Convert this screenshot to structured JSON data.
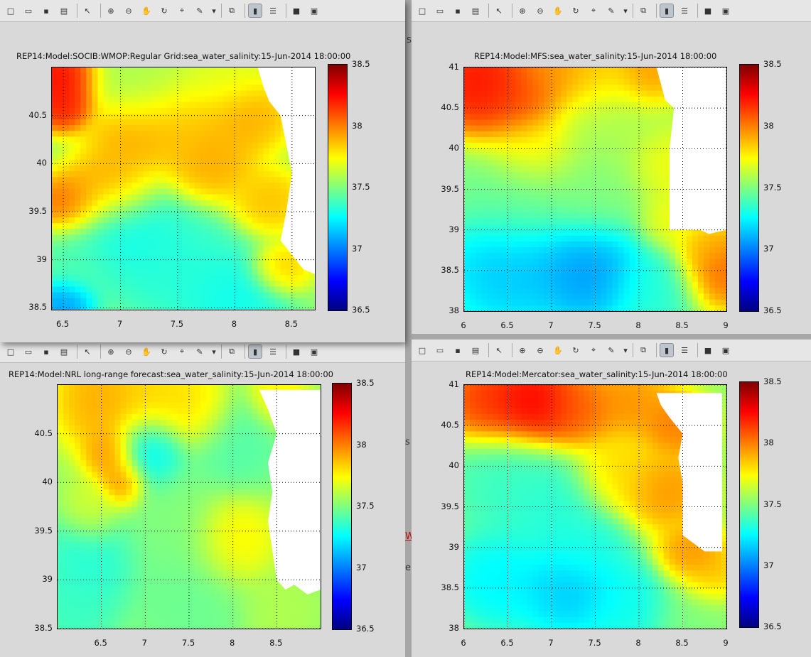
{
  "colors": {
    "colormap": [
      "#00007f",
      "#0000ff",
      "#007fff",
      "#00ffff",
      "#7fff7f",
      "#ffff00",
      "#ff7f00",
      "#ff0000",
      "#7f0000"
    ],
    "land": "#ffffff"
  },
  "toolbar_icons": [
    "new-file-icon",
    "open-folder-icon",
    "save-icon",
    "print-icon",
    "pointer-icon",
    "zoom-in-icon",
    "zoom-out-icon",
    "pan-hand-icon",
    "rotate-3d-icon",
    "data-cursor-icon",
    "brush-icon",
    "dropdown-arrow-icon",
    "link-plot-icon",
    "colorbar-toggle-icon",
    "legend-toggle-icon",
    "hide-tools-icon",
    "dock-icon"
  ],
  "background": {
    "fragments": [
      "s",
      "S",
      "W",
      "e"
    ]
  },
  "panels": [
    {
      "id": "socib",
      "title": "REP14:Model:SOCIB:WMOP:Regular Grid:sea_water_salinity:15-Jun-2014 18:00:00",
      "xticks": [
        "6.5",
        "7",
        "7.5",
        "8",
        "8.5"
      ],
      "yticks": [
        "40.5",
        "40",
        "39.5",
        "39",
        "38.5"
      ],
      "cbar_ticks": [
        "38.5",
        "38",
        "37.5",
        "37",
        "36.5"
      ],
      "chart_data": {
        "type": "heatmap",
        "variable": "sea_water_salinity",
        "xlim": [
          6.4,
          8.7
        ],
        "ylim": [
          38.48,
          41.0
        ],
        "clim": [
          36.5,
          38.5
        ],
        "grid": true,
        "blobs": [
          {
            "x": 6.45,
            "y": 40.9,
            "v": 38.3,
            "r": 0.25
          },
          {
            "x": 6.5,
            "y": 40.6,
            "v": 38.25,
            "r": 0.2
          },
          {
            "x": 6.55,
            "y": 39.55,
            "v": 38.15,
            "r": 0.25
          },
          {
            "x": 6.9,
            "y": 39.75,
            "v": 38.0,
            "r": 0.3
          },
          {
            "x": 7.1,
            "y": 40.3,
            "v": 37.95,
            "r": 0.3
          },
          {
            "x": 7.5,
            "y": 40.4,
            "v": 37.9,
            "r": 0.35
          },
          {
            "x": 7.8,
            "y": 40.0,
            "v": 37.95,
            "r": 0.3
          },
          {
            "x": 8.1,
            "y": 40.5,
            "v": 37.95,
            "r": 0.3
          },
          {
            "x": 8.3,
            "y": 39.6,
            "v": 37.9,
            "r": 0.25
          },
          {
            "x": 8.4,
            "y": 38.9,
            "v": 37.9,
            "r": 0.2
          },
          {
            "x": 7.0,
            "y": 39.3,
            "v": 37.25,
            "r": 0.4
          },
          {
            "x": 7.5,
            "y": 38.9,
            "v": 37.3,
            "r": 0.45
          },
          {
            "x": 8.0,
            "y": 38.6,
            "v": 37.25,
            "r": 0.35
          },
          {
            "x": 6.5,
            "y": 38.55,
            "v": 37.0,
            "r": 0.2
          },
          {
            "x": 6.6,
            "y": 39.0,
            "v": 37.4,
            "r": 0.3
          },
          {
            "x": 7.2,
            "y": 40.8,
            "v": 37.6,
            "r": 0.35
          },
          {
            "x": 7.9,
            "y": 40.9,
            "v": 37.7,
            "r": 0.3
          }
        ],
        "land": [
          [
            8.2,
            41.0
          ],
          [
            8.7,
            41.0
          ],
          [
            8.7,
            38.85
          ],
          [
            8.6,
            38.9
          ],
          [
            8.5,
            39.05
          ],
          [
            8.4,
            39.2
          ],
          [
            8.45,
            39.5
          ],
          [
            8.5,
            39.9
          ],
          [
            8.45,
            40.2
          ],
          [
            8.4,
            40.5
          ],
          [
            8.3,
            40.65
          ],
          [
            8.25,
            40.8
          ],
          [
            8.2,
            41.0
          ]
        ]
      }
    },
    {
      "id": "mfs",
      "title": "REP14:Model:MFS:sea_water_salinity:15-Jun-2014 18:00:00",
      "xticks": [
        "6",
        "6.5",
        "7",
        "7.5",
        "8",
        "8.5",
        "9"
      ],
      "yticks": [
        "41",
        "40.5",
        "40",
        "39.5",
        "39",
        "38.5",
        "38"
      ],
      "cbar_ticks": [
        "38.5",
        "38",
        "37.5",
        "37",
        "36.5"
      ],
      "chart_data": {
        "type": "heatmap",
        "variable": "sea_water_salinity",
        "xlim": [
          6.0,
          9.0
        ],
        "ylim": [
          38.0,
          41.0
        ],
        "clim": [
          36.5,
          38.5
        ],
        "grid": true,
        "blobs": [
          {
            "x": 6.2,
            "y": 40.8,
            "v": 38.3,
            "r": 0.45
          },
          {
            "x": 6.6,
            "y": 40.6,
            "v": 38.15,
            "r": 0.4
          },
          {
            "x": 7.0,
            "y": 40.95,
            "v": 38.0,
            "r": 0.35
          },
          {
            "x": 7.5,
            "y": 40.95,
            "v": 37.9,
            "r": 0.4
          },
          {
            "x": 8.1,
            "y": 40.9,
            "v": 38.0,
            "r": 0.3
          },
          {
            "x": 7.7,
            "y": 40.3,
            "v": 37.6,
            "r": 0.5
          },
          {
            "x": 6.8,
            "y": 40.0,
            "v": 37.8,
            "r": 0.4
          },
          {
            "x": 6.6,
            "y": 39.4,
            "v": 37.45,
            "r": 0.5
          },
          {
            "x": 7.5,
            "y": 39.5,
            "v": 37.5,
            "r": 0.5
          },
          {
            "x": 8.3,
            "y": 39.8,
            "v": 37.75,
            "r": 0.35
          },
          {
            "x": 8.4,
            "y": 39.1,
            "v": 37.75,
            "r": 0.3
          },
          {
            "x": 6.5,
            "y": 38.5,
            "v": 37.1,
            "r": 0.55
          },
          {
            "x": 7.4,
            "y": 38.5,
            "v": 37.0,
            "r": 0.5
          },
          {
            "x": 8.2,
            "y": 38.3,
            "v": 37.3,
            "r": 0.4
          },
          {
            "x": 8.9,
            "y": 38.5,
            "v": 38.1,
            "r": 0.35
          },
          {
            "x": 8.75,
            "y": 38.8,
            "v": 37.9,
            "r": 0.25
          }
        ],
        "land": [
          [
            8.2,
            41.0
          ],
          [
            9.0,
            41.0
          ],
          [
            9.0,
            39.0
          ],
          [
            8.8,
            38.95
          ],
          [
            8.7,
            39.0
          ],
          [
            8.35,
            39.0
          ],
          [
            8.35,
            40.0
          ],
          [
            8.4,
            40.5
          ],
          [
            8.3,
            40.6
          ],
          [
            8.25,
            40.8
          ],
          [
            8.2,
            41.0
          ]
        ]
      }
    },
    {
      "id": "nrl",
      "title": "REP14:Model:NRL long-range forecast:sea_water_salinity:15-Jun-2014 18:00:00",
      "xticks": [
        "6.5",
        "7",
        "7.5",
        "8",
        "8.5"
      ],
      "yticks": [
        "40.5",
        "40",
        "39.5",
        "39",
        "38.5"
      ],
      "cbar_ticks": [
        "38.5",
        "38",
        "37.5",
        "37",
        "36.5"
      ],
      "chart_data": {
        "type": "heatmap",
        "variable": "sea_water_salinity",
        "xlim": [
          6.0,
          9.0
        ],
        "ylim": [
          38.5,
          41.0
        ],
        "clim": [
          36.5,
          38.5
        ],
        "grid": true,
        "blobs": [
          {
            "x": 6.5,
            "y": 40.85,
            "v": 37.95,
            "r": 0.4
          },
          {
            "x": 7.1,
            "y": 40.9,
            "v": 37.85,
            "r": 0.35
          },
          {
            "x": 7.6,
            "y": 40.75,
            "v": 37.85,
            "r": 0.3
          },
          {
            "x": 6.6,
            "y": 40.3,
            "v": 38.0,
            "r": 0.22
          },
          {
            "x": 6.75,
            "y": 40.0,
            "v": 38.05,
            "r": 0.2
          },
          {
            "x": 6.4,
            "y": 39.7,
            "v": 37.7,
            "r": 0.25
          },
          {
            "x": 7.05,
            "y": 40.3,
            "v": 37.2,
            "r": 0.3
          },
          {
            "x": 6.4,
            "y": 39.2,
            "v": 37.3,
            "r": 0.4
          },
          {
            "x": 7.3,
            "y": 39.6,
            "v": 37.5,
            "r": 0.45
          },
          {
            "x": 8.0,
            "y": 39.4,
            "v": 37.8,
            "r": 0.35
          },
          {
            "x": 8.0,
            "y": 40.4,
            "v": 37.4,
            "r": 0.4
          },
          {
            "x": 7.5,
            "y": 38.8,
            "v": 37.45,
            "r": 0.5
          },
          {
            "x": 8.5,
            "y": 38.7,
            "v": 37.6,
            "r": 0.3
          },
          {
            "x": 6.2,
            "y": 38.7,
            "v": 37.35,
            "r": 0.35
          },
          {
            "x": 8.5,
            "y": 40.9,
            "v": 37.8,
            "r": 0.25
          }
        ],
        "land": [
          [
            8.3,
            40.95
          ],
          [
            9.0,
            40.95
          ],
          [
            9.0,
            38.9
          ],
          [
            8.85,
            38.85
          ],
          [
            8.7,
            38.95
          ],
          [
            8.6,
            38.9
          ],
          [
            8.5,
            39.0
          ],
          [
            8.45,
            39.3
          ],
          [
            8.4,
            39.6
          ],
          [
            8.45,
            39.9
          ],
          [
            8.4,
            40.2
          ],
          [
            8.5,
            40.5
          ],
          [
            8.4,
            40.75
          ],
          [
            8.3,
            40.95
          ]
        ]
      }
    },
    {
      "id": "mercator",
      "title": "REP14:Model:Mercator:sea_water_salinity:15-Jun-2014 18:00:00",
      "xticks": [
        "6",
        "6.5",
        "7",
        "7.5",
        "8",
        "8.5",
        "9"
      ],
      "yticks": [
        "41",
        "40.5",
        "40",
        "39.5",
        "39",
        "38.5",
        "38"
      ],
      "cbar_ticks": [
        "38.5",
        "38",
        "37.5",
        "37",
        "36.5"
      ],
      "chart_data": {
        "type": "heatmap",
        "variable": "sea_water_salinity",
        "xlim": [
          6.0,
          9.0
        ],
        "ylim": [
          38.0,
          41.0
        ],
        "clim": [
          36.5,
          38.5
        ],
        "grid": true,
        "blobs": [
          {
            "x": 6.3,
            "y": 40.8,
            "v": 38.2,
            "r": 0.4
          },
          {
            "x": 6.8,
            "y": 40.75,
            "v": 38.35,
            "r": 0.4
          },
          {
            "x": 7.3,
            "y": 40.7,
            "v": 38.1,
            "r": 0.35
          },
          {
            "x": 7.9,
            "y": 40.8,
            "v": 38.0,
            "r": 0.35
          },
          {
            "x": 8.4,
            "y": 40.5,
            "v": 38.05,
            "r": 0.3
          },
          {
            "x": 8.3,
            "y": 39.7,
            "v": 38.0,
            "r": 0.35
          },
          {
            "x": 7.8,
            "y": 39.9,
            "v": 37.85,
            "r": 0.4
          },
          {
            "x": 8.6,
            "y": 38.9,
            "v": 38.0,
            "r": 0.3
          },
          {
            "x": 8.8,
            "y": 38.6,
            "v": 37.9,
            "r": 0.25
          },
          {
            "x": 6.5,
            "y": 39.8,
            "v": 37.35,
            "r": 0.5
          },
          {
            "x": 7.0,
            "y": 39.4,
            "v": 37.3,
            "r": 0.5
          },
          {
            "x": 6.4,
            "y": 38.6,
            "v": 37.2,
            "r": 0.45
          },
          {
            "x": 7.2,
            "y": 38.5,
            "v": 37.1,
            "r": 0.45
          },
          {
            "x": 7.9,
            "y": 38.3,
            "v": 37.25,
            "r": 0.4
          },
          {
            "x": 8.6,
            "y": 38.2,
            "v": 37.5,
            "r": 0.35
          },
          {
            "x": 7.4,
            "y": 39.0,
            "v": 37.3,
            "r": 0.35
          }
        ],
        "land": [
          [
            8.2,
            40.9
          ],
          [
            8.95,
            40.9
          ],
          [
            8.95,
            38.95
          ],
          [
            8.75,
            38.95
          ],
          [
            8.5,
            39.15
          ],
          [
            8.5,
            39.8
          ],
          [
            8.45,
            40.1
          ],
          [
            8.5,
            40.4
          ],
          [
            8.35,
            40.6
          ],
          [
            8.25,
            40.75
          ],
          [
            8.2,
            40.9
          ]
        ]
      }
    }
  ]
}
